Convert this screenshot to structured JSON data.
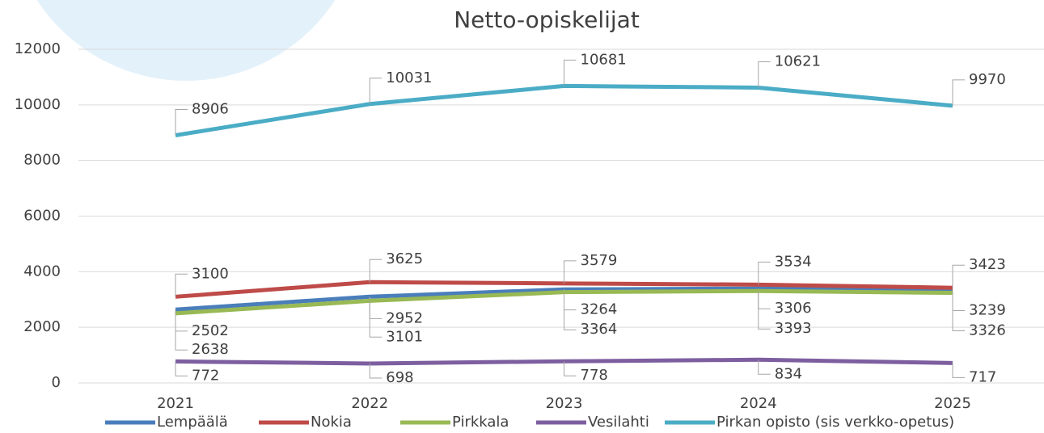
{
  "chart_data": {
    "type": "line",
    "title": "Netto-opiskelijat",
    "categories": [
      "2021",
      "2022",
      "2023",
      "2024",
      "2025"
    ],
    "series": [
      {
        "name": "Lempäälä",
        "color": "#4a7ebb",
        "values": [
          2638,
          3101,
          3364,
          3393,
          3326
        ]
      },
      {
        "name": "Nokia",
        "color": "#be4b48",
        "values": [
          3100,
          3625,
          3579,
          3534,
          3423
        ]
      },
      {
        "name": "Pirkkala",
        "color": "#98b954",
        "values": [
          2502,
          2952,
          3264,
          3306,
          3239
        ]
      },
      {
        "name": "Vesilahti",
        "color": "#7d5fa0",
        "values": [
          772,
          698,
          778,
          834,
          717
        ]
      },
      {
        "name": "Pirkan opisto (sis verkko-opetus)",
        "color": "#4bacc6",
        "values": [
          8906,
          10031,
          10681,
          10621,
          9970
        ]
      }
    ],
    "ylim": [
      0,
      12000
    ],
    "yticks": [
      0,
      2000,
      4000,
      6000,
      8000,
      10000,
      12000
    ],
    "grid": true,
    "legend": "bottom"
  }
}
